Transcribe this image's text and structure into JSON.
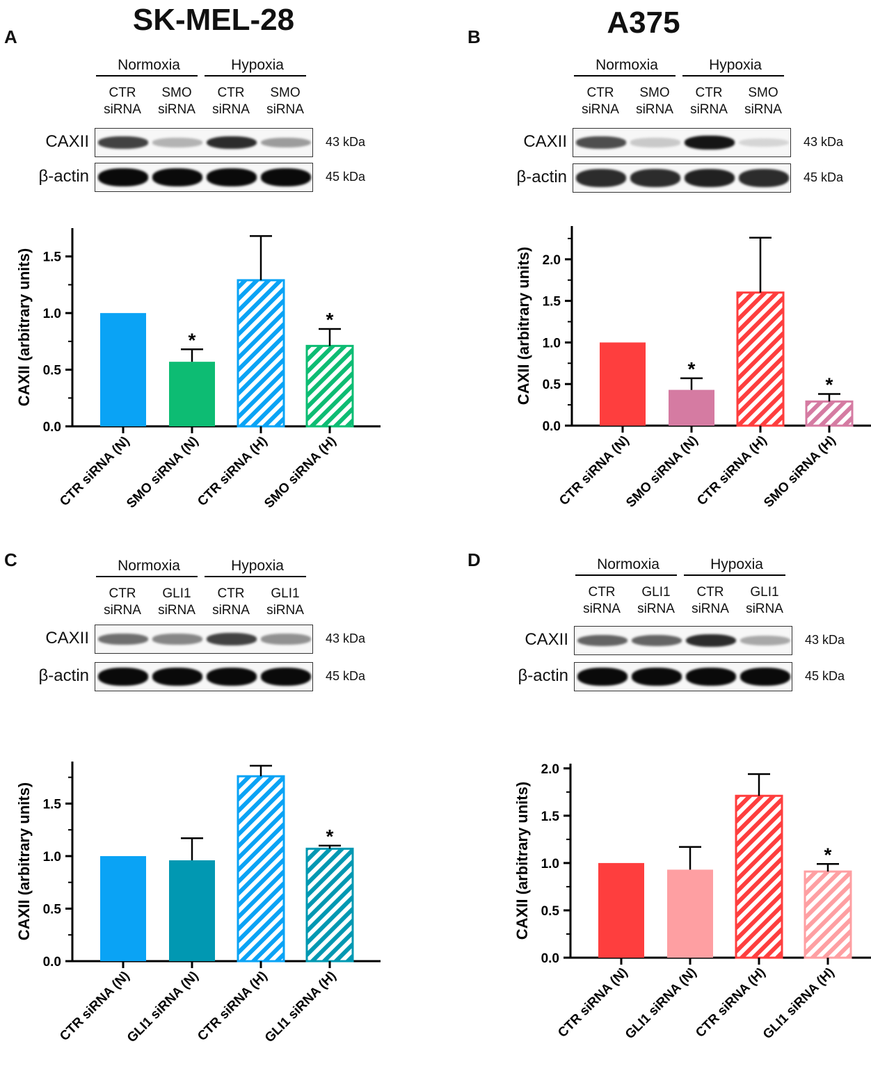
{
  "column_titles": [
    "SK-MEL-28",
    "A375"
  ],
  "panels": [
    {
      "letter": "A",
      "blot": {
        "conditions": [
          "Normoxia",
          "Hypoxia"
        ],
        "lanes": [
          [
            "CTR",
            "siRNA"
          ],
          [
            "SMO",
            "siRNA"
          ],
          [
            "CTR",
            "siRNA"
          ],
          [
            "SMO",
            "siRNA"
          ]
        ],
        "rows": [
          {
            "label": "CAXII",
            "kda": "43 kDa",
            "intensity": [
              0.75,
              0.25,
              0.85,
              0.35
            ]
          },
          {
            "label": "β-actin",
            "kda": "45 kDa",
            "intensity": [
              1,
              1,
              1,
              1
            ]
          }
        ]
      }
    },
    {
      "letter": "B",
      "blot": {
        "conditions": [
          "Normoxia",
          "Hypoxia"
        ],
        "lanes": [
          [
            "CTR",
            "siRNA"
          ],
          [
            "SMO",
            "siRNA"
          ],
          [
            "CTR",
            "siRNA"
          ],
          [
            "SMO",
            "siRNA"
          ]
        ],
        "rows": [
          {
            "label": "CAXII",
            "kda": "43 kDa",
            "intensity": [
              0.7,
              0.15,
              0.95,
              0.1
            ]
          },
          {
            "label": "β-actin",
            "kda": "45 kDa",
            "intensity": [
              0.85,
              0.85,
              0.9,
              0.85
            ]
          }
        ]
      }
    },
    {
      "letter": "C",
      "blot": {
        "conditions": [
          "Normoxia",
          "Hypoxia"
        ],
        "lanes": [
          [
            "CTR",
            "siRNA"
          ],
          [
            "GLI1",
            "siRNA"
          ],
          [
            "CTR",
            "siRNA"
          ],
          [
            "GLI1",
            "siRNA"
          ]
        ],
        "rows": [
          {
            "label": "CAXII",
            "kda": "43 kDa",
            "intensity": [
              0.55,
              0.45,
              0.75,
              0.4
            ]
          },
          {
            "label": "β-actin",
            "kda": "45 kDa",
            "intensity": [
              1,
              1,
              1,
              1
            ]
          }
        ]
      }
    },
    {
      "letter": "D",
      "blot": {
        "conditions": [
          "Normoxia",
          "Hypoxia"
        ],
        "lanes": [
          [
            "CTR",
            "siRNA"
          ],
          [
            "GLI1",
            "siRNA"
          ],
          [
            "CTR",
            "siRNA"
          ],
          [
            "GLI1",
            "siRNA"
          ]
        ],
        "rows": [
          {
            "label": "CAXII",
            "kda": "43 kDa",
            "intensity": [
              0.6,
              0.6,
              0.85,
              0.3
            ]
          },
          {
            "label": "β-actin",
            "kda": "45 kDa",
            "intensity": [
              1,
              1,
              1,
              1
            ]
          }
        ]
      }
    }
  ],
  "chart_data": [
    {
      "type": "bar",
      "ylabel": "CAXII (arbitrary units)",
      "ylim": [
        0,
        1.75
      ],
      "yticks": [
        "0.0",
        "0.5",
        "1.0",
        "1.5"
      ],
      "categories": [
        "CTR siRNA (N)",
        "SMO siRNA (N)",
        "CTR siRNA (H)",
        "SMO siRNA (H)"
      ],
      "values": [
        1.0,
        0.57,
        1.29,
        0.71
      ],
      "errors": [
        0,
        0.11,
        0.39,
        0.15
      ],
      "significance": [
        "",
        "*",
        "",
        "*"
      ],
      "hatched": [
        false,
        false,
        true,
        true
      ],
      "colors": [
        "#0aa3f5",
        "#0dbc73",
        "#0aa3f5",
        "#0dbc73"
      ]
    },
    {
      "type": "bar",
      "ylabel": "CAXII (arbitrary units)",
      "ylim": [
        0,
        2.4
      ],
      "yticks": [
        "0.0",
        "0.5",
        "1.0",
        "1.5",
        "2.0"
      ],
      "categories": [
        "CTR siRNA (N)",
        "SMO siRNA (N)",
        "CTR siRNA (H)",
        "SMO siRNA (H)"
      ],
      "values": [
        1.0,
        0.43,
        1.6,
        0.29
      ],
      "errors": [
        0,
        0.14,
        0.66,
        0.09
      ],
      "significance": [
        "",
        "*",
        "",
        "*"
      ],
      "hatched": [
        false,
        false,
        true,
        true
      ],
      "colors": [
        "#fe3e3e",
        "#d57ba2",
        "#fe3e3e",
        "#d57ba2"
      ]
    },
    {
      "type": "bar",
      "ylabel": "CAXII (arbitrary units)",
      "ylim": [
        0,
        1.9
      ],
      "yticks": [
        "0.0",
        "0.5",
        "1.0",
        "1.5"
      ],
      "categories": [
        "CTR siRNA (N)",
        "GLI1 siRNA (N)",
        "CTR siRNA (H)",
        "GLI1 siRNA (H)"
      ],
      "values": [
        1.0,
        0.96,
        1.76,
        1.07
      ],
      "errors": [
        0,
        0.21,
        0.1,
        0.03
      ],
      "significance": [
        "",
        "",
        "",
        "*"
      ],
      "hatched": [
        false,
        false,
        true,
        true
      ],
      "colors": [
        "#0aa3f5",
        "#0198b2",
        "#0aa3f5",
        "#0198b2"
      ]
    },
    {
      "type": "bar",
      "ylabel": "CAXII (arbitrary units)",
      "ylim": [
        0,
        2.05
      ],
      "yticks": [
        "0.0",
        "0.5",
        "1.0",
        "1.5",
        "2.0"
      ],
      "categories": [
        "CTR siRNA (N)",
        "GLI1 siRNA (N)",
        "CTR siRNA (H)",
        "GLI1 siRNA (H)"
      ],
      "values": [
        1.0,
        0.93,
        1.71,
        0.91
      ],
      "errors": [
        0,
        0.24,
        0.23,
        0.08
      ],
      "significance": [
        "",
        "",
        "",
        "*"
      ],
      "hatched": [
        false,
        false,
        true,
        true
      ],
      "colors": [
        "#fe3e3e",
        "#fe9fa2",
        "#fe3e3e",
        "#fe9fa2"
      ]
    }
  ]
}
